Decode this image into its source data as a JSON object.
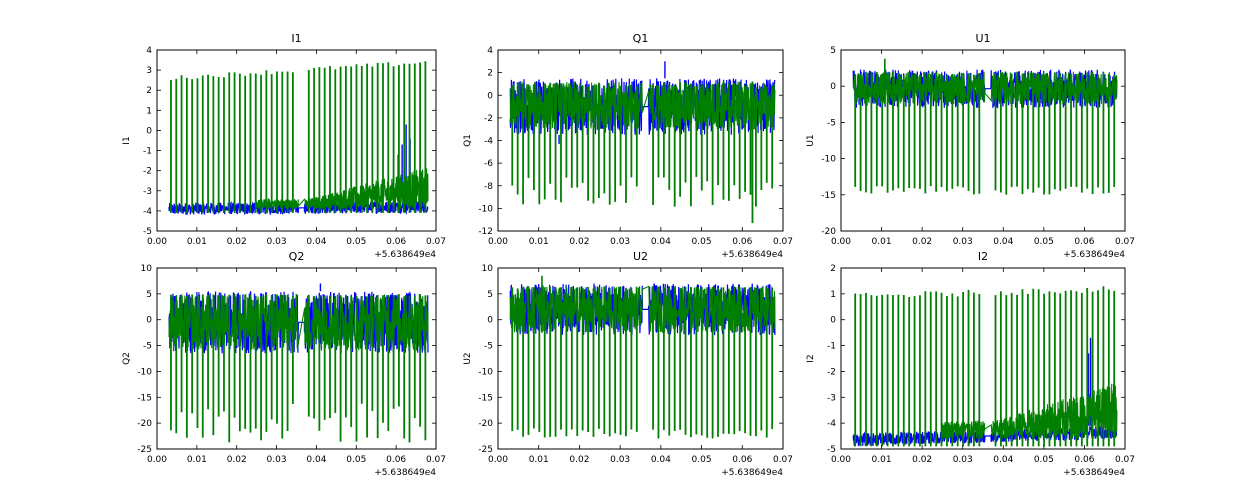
{
  "figure": {
    "offset_text": "+5.638649e4",
    "x_range": [
      0.0,
      0.07
    ],
    "x_ticks": [
      "0.00",
      "0.01",
      "0.02",
      "0.03",
      "0.04",
      "0.05",
      "0.06",
      "0.07"
    ],
    "series_colors": {
      "blue": "#0000ff",
      "green": "#007f00"
    }
  },
  "chart_data": [
    {
      "type": "line",
      "title": "I1",
      "ylabel": "I1",
      "ylim": [
        -5,
        4
      ],
      "y_ticks": [
        "4",
        "3",
        "2",
        "1",
        "0",
        "-1",
        "-2",
        "-3",
        "-4",
        "-5"
      ],
      "series": [
        {
          "name": "blue",
          "color": "#0000ff",
          "band_low": -4.2,
          "band_high": -3.6,
          "trend_end": -3.5,
          "spikes": [
            {
              "x": 0.0605,
              "y": -1.2
            },
            {
              "x": 0.0615,
              "y": -0.7
            },
            {
              "x": 0.0625,
              "y": 0.3
            },
            {
              "x": 0.0635,
              "y": -0.4
            }
          ]
        },
        {
          "name": "green",
          "color": "#007f00",
          "spike_top_start": 2.6,
          "spike_top_end": 3.4,
          "spike_bottom": -4.1,
          "band_low": -3.9,
          "band_high": -3.4
        }
      ]
    },
    {
      "type": "line",
      "title": "Q1",
      "ylabel": "Q1",
      "ylim": [
        -12,
        4
      ],
      "y_ticks": [
        "4",
        "2",
        "0",
        "-2",
        "-4",
        "-6",
        "-8",
        "-10",
        "-12"
      ],
      "series": [
        {
          "name": "blue",
          "color": "#0000ff",
          "band_low": -3.5,
          "band_high": 1.5,
          "peak": 3.0,
          "trough": -4.3
        },
        {
          "name": "green",
          "color": "#007f00",
          "band_low": -3.0,
          "band_high": 1.2,
          "spike_bottom_min": -10.0,
          "spike_bottom_max": -7.2,
          "lowest": -11.3
        }
      ]
    },
    {
      "type": "line",
      "title": "U1",
      "ylabel": "U1",
      "ylim": [
        -20,
        5
      ],
      "y_ticks": [
        "5",
        "0",
        "-5",
        "-10",
        "-15",
        "-20"
      ],
      "series": [
        {
          "name": "blue",
          "color": "#0000ff",
          "band_low": -3.0,
          "band_high": 2.3
        },
        {
          "name": "green",
          "color": "#007f00",
          "band_low": -2.5,
          "band_high": 2.0,
          "spike_bottom_min": -15.0,
          "spike_bottom_max": -13.8,
          "peak": 3.8
        }
      ]
    },
    {
      "type": "line",
      "title": "Q2",
      "ylabel": "Q2",
      "ylim": [
        -25,
        10
      ],
      "y_ticks": [
        "10",
        "5",
        "0",
        "-5",
        "-10",
        "-15",
        "-20",
        "-25"
      ],
      "series": [
        {
          "name": "blue",
          "color": "#0000ff",
          "band_low": -6.5,
          "band_high": 5.5,
          "peak": 7.0
        },
        {
          "name": "green",
          "color": "#007f00",
          "band_low": -6.0,
          "band_high": 5.0,
          "spike_bottom_min": -24.0,
          "spike_bottom_max": -16.0
        }
      ]
    },
    {
      "type": "line",
      "title": "U2",
      "ylabel": "U2",
      "ylim": [
        -25,
        10
      ],
      "y_ticks": [
        "10",
        "5",
        "0",
        "-5",
        "-10",
        "-15",
        "-20",
        "-25"
      ],
      "series": [
        {
          "name": "blue",
          "color": "#0000ff",
          "band_low": -3.0,
          "band_high": 7.0
        },
        {
          "name": "green",
          "color": "#007f00",
          "band_low": -2.5,
          "band_high": 6.5,
          "spike_bottom_min": -23.0,
          "spike_bottom_max": -21.0,
          "peak": 8.5
        }
      ]
    },
    {
      "type": "line",
      "title": "I2",
      "ylabel": "I2",
      "ylim": [
        -5,
        2
      ],
      "y_ticks": [
        "2",
        "1",
        "0",
        "-1",
        "-2",
        "-3",
        "-4",
        "-5"
      ],
      "series": [
        {
          "name": "blue",
          "color": "#0000ff",
          "band_low": -4.9,
          "band_high": -4.4,
          "trend_end": -4.1,
          "spikes": [
            {
              "x": 0.061,
              "y": -1.3
            },
            {
              "x": 0.0615,
              "y": -0.7
            },
            {
              "x": 0.062,
              "y": -1.0
            }
          ]
        },
        {
          "name": "green",
          "color": "#007f00",
          "spike_top_start": 0.9,
          "spike_top_end": 1.2,
          "spike_bottom": -4.9,
          "band_low": -4.6,
          "band_high": -3.9
        }
      ]
    }
  ]
}
